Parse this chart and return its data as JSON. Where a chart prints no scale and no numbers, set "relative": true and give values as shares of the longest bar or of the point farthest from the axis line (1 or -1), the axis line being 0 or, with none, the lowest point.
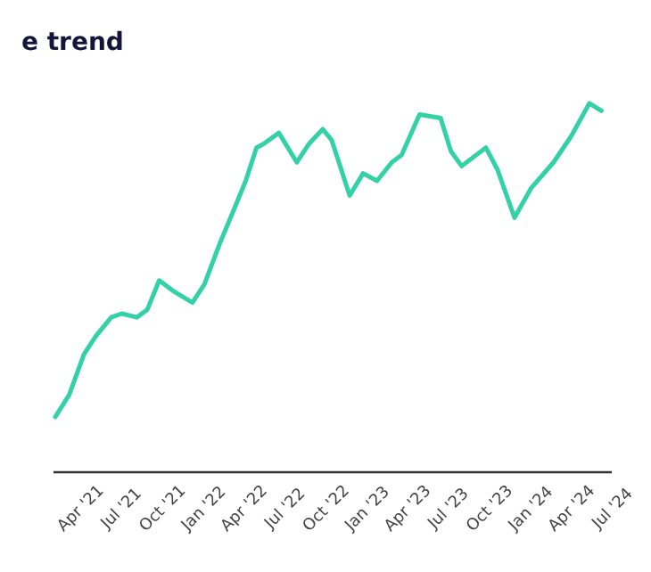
{
  "chart_data": {
    "type": "line",
    "title": "e trend",
    "relative": true,
    "x": [
      "2021-02-05",
      "2021-03-08",
      "2021-04-10",
      "2021-05-07",
      "2021-06-10",
      "2021-07-03",
      "2021-08-06",
      "2021-08-29",
      "2021-09-25",
      "2021-10-28",
      "2021-12-08",
      "2022-01-04",
      "2022-02-07",
      "2022-03-10",
      "2022-04-06",
      "2022-04-30",
      "2022-05-16",
      "2022-06-19",
      "2022-07-29",
      "2022-08-25",
      "2022-09-25",
      "2022-10-15",
      "2022-11-24",
      "2022-12-24",
      "2023-01-24",
      "2023-02-26",
      "2023-03-20",
      "2023-04-29",
      "2023-06-15",
      "2023-07-08",
      "2023-08-01",
      "2023-09-24",
      "2023-10-20",
      "2023-11-27",
      "2024-01-03",
      "2024-02-22",
      "2024-04-01",
      "2024-05-12",
      "2024-06-08"
    ],
    "series": [
      {
        "color": "#33d1a7",
        "values": [
          0.15,
          0.21,
          0.32,
          0.37,
          0.42,
          0.43,
          0.42,
          0.44,
          0.52,
          0.49,
          0.46,
          0.51,
          0.62,
          0.71,
          0.79,
          0.88,
          0.89,
          0.92,
          0.84,
          0.89,
          0.93,
          0.9,
          0.75,
          0.81,
          0.79,
          0.84,
          0.86,
          0.97,
          0.96,
          0.87,
          0.83,
          0.88,
          0.82,
          0.69,
          0.77,
          0.84,
          0.91,
          1.0,
          0.98
        ]
      }
    ],
    "xlim": [
      "2021-02-01",
      "2024-07-01"
    ],
    "xticks": [
      {
        "value": "2021-04-01",
        "label": "Apr '21"
      },
      {
        "value": "2021-07-01",
        "label": "Jul '21"
      },
      {
        "value": "2021-10-01",
        "label": "Oct '21"
      },
      {
        "value": "2022-01-01",
        "label": "Jan '22"
      },
      {
        "value": "2022-04-01",
        "label": "Apr '22"
      },
      {
        "value": "2022-07-01",
        "label": "Jul '22"
      },
      {
        "value": "2022-10-01",
        "label": "Oct '22"
      },
      {
        "value": "2023-01-01",
        "label": "Jan '23"
      },
      {
        "value": "2023-04-01",
        "label": "Apr '23"
      },
      {
        "value": "2023-07-01",
        "label": "Jul '23"
      },
      {
        "value": "2023-10-01",
        "label": "Oct '23"
      },
      {
        "value": "2024-01-01",
        "label": "Jan '24"
      },
      {
        "value": "2024-04-01",
        "label": "Apr '24"
      },
      {
        "value": "2024-07-01",
        "label": "Jul '24"
      }
    ],
    "grid": false,
    "marker": "none",
    "line_style": "solid"
  }
}
